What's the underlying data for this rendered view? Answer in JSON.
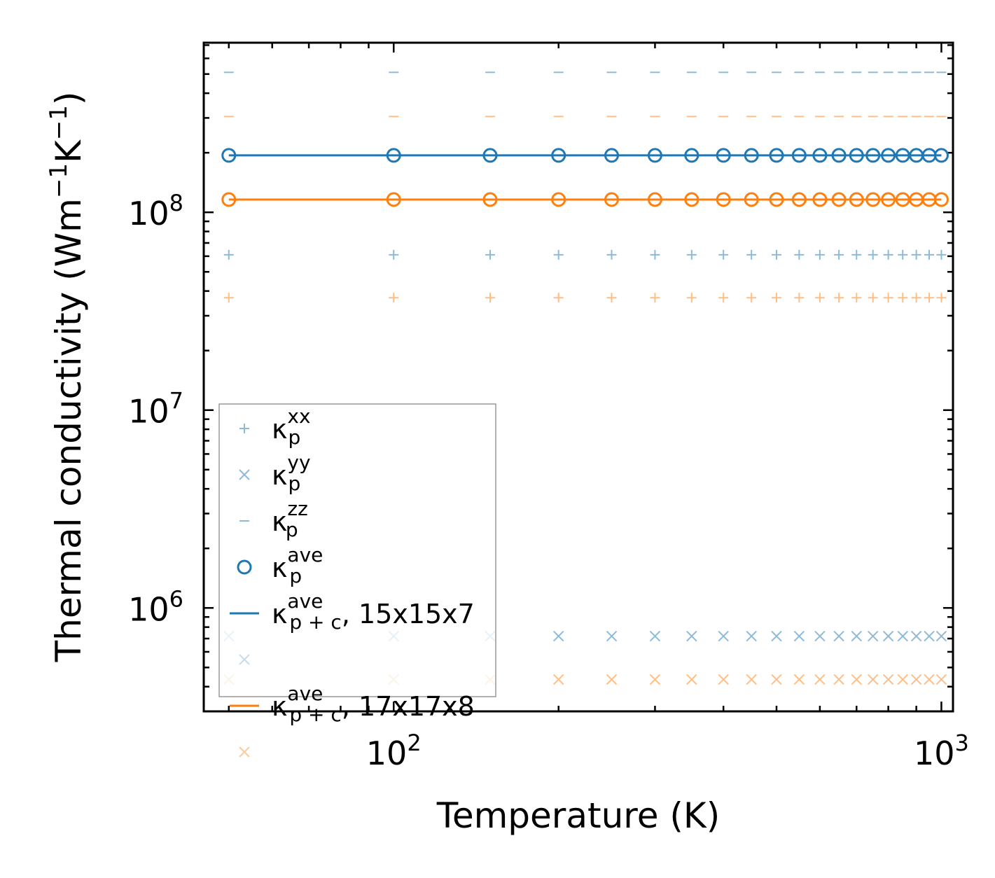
{
  "chart_data": {
    "type": "scatter",
    "xscale": "log",
    "yscale": "log",
    "xlabel": "Temperature (K)",
    "ylabel": {
      "base": "Thermal conductivity (Wm",
      "sup1": "−1",
      "mid": "K",
      "sup2": "−1",
      "end": ")"
    },
    "xlim": [
      45,
      1050
    ],
    "ylim": [
      300000,
      720000000
    ],
    "x_ticks": [
      {
        "value": 100,
        "base": "10",
        "exp": "2"
      },
      {
        "value": 1000,
        "base": "10",
        "exp": "3"
      }
    ],
    "y_ticks": [
      {
        "value": 1000000,
        "base": "10",
        "exp": "6"
      },
      {
        "value": 10000000,
        "base": "10",
        "exp": "7"
      },
      {
        "value": 100000000,
        "base": "10",
        "exp": "8"
      }
    ],
    "x": [
      50,
      100,
      150,
      200,
      250,
      300,
      350,
      400,
      450,
      500,
      550,
      600,
      650,
      700,
      750,
      800,
      850,
      900,
      950,
      1000
    ],
    "series": [
      {
        "name": "kp_xx_15",
        "marker": "plus",
        "color": "#1f77b4",
        "alpha": 0.5,
        "value": 61000000
      },
      {
        "name": "kp_yy_15",
        "marker": "x",
        "color": "#1f77b4",
        "alpha": 0.5,
        "value": 720000
      },
      {
        "name": "kp_zz_15",
        "marker": "hline",
        "color": "#1f77b4",
        "alpha": 0.5,
        "value": 510000000
      },
      {
        "name": "kp_ave_15",
        "marker": "circle",
        "color": "#1f77b4",
        "alpha": 1,
        "value": 194000000
      },
      {
        "name": "kpc_ave_15",
        "marker": "line",
        "color": "#1f77b4",
        "alpha": 1,
        "value": 194000000
      },
      {
        "name": "kp_xx_17",
        "marker": "plus",
        "color": "#ff7f0e",
        "alpha": 0.5,
        "value": 37000000
      },
      {
        "name": "kp_yy_17",
        "marker": "x",
        "color": "#ff7f0e",
        "alpha": 0.5,
        "value": 435000
      },
      {
        "name": "kp_zz_17",
        "marker": "hline",
        "color": "#ff7f0e",
        "alpha": 0.5,
        "value": 305000000
      },
      {
        "name": "kp_ave_17",
        "marker": "circle",
        "color": "#ff7f0e",
        "alpha": 1,
        "value": 116000000
      },
      {
        "name": "kpc_ave_17",
        "marker": "line",
        "color": "#ff7f0e",
        "alpha": 1,
        "value": 116000000
      }
    ],
    "legend": {
      "placement": "lower-left",
      "entries": [
        {
          "marker": "plus",
          "color": "#1f77b4",
          "alpha": 0.5,
          "kappa": "κ",
          "sub": "p",
          "sup": "xx",
          "suffix": ""
        },
        {
          "marker": "x",
          "color": "#1f77b4",
          "alpha": 0.5,
          "kappa": "κ",
          "sub": "p",
          "sup": "yy",
          "suffix": ""
        },
        {
          "marker": "hline",
          "color": "#1f77b4",
          "alpha": 0.5,
          "kappa": "κ",
          "sub": "p",
          "sup": "zz",
          "suffix": ""
        },
        {
          "marker": "circle",
          "color": "#1f77b4",
          "alpha": 1,
          "kappa": "κ",
          "sub": "p",
          "sup": "ave",
          "suffix": ""
        },
        {
          "marker": "line",
          "color": "#1f77b4",
          "alpha": 1,
          "kappa": "κ",
          "sub": "p + c",
          "sup": "ave",
          "suffix": ", 15x15x7"
        },
        {
          "marker": "x",
          "color": "#1f77b4",
          "alpha": 0.25,
          "kappa": "",
          "sub": "",
          "sup": "",
          "suffix": ""
        },
        {
          "marker": "line",
          "color": "#ff7f0e",
          "alpha": 1,
          "kappa": "κ",
          "sub": "p + c",
          "sup": "ave",
          "suffix": ", 17x17x8"
        },
        {
          "marker": "x",
          "color": "#ff7f0e",
          "alpha": 0.4,
          "kappa": "",
          "sub": "",
          "sup": "",
          "suffix": ""
        }
      ]
    }
  }
}
